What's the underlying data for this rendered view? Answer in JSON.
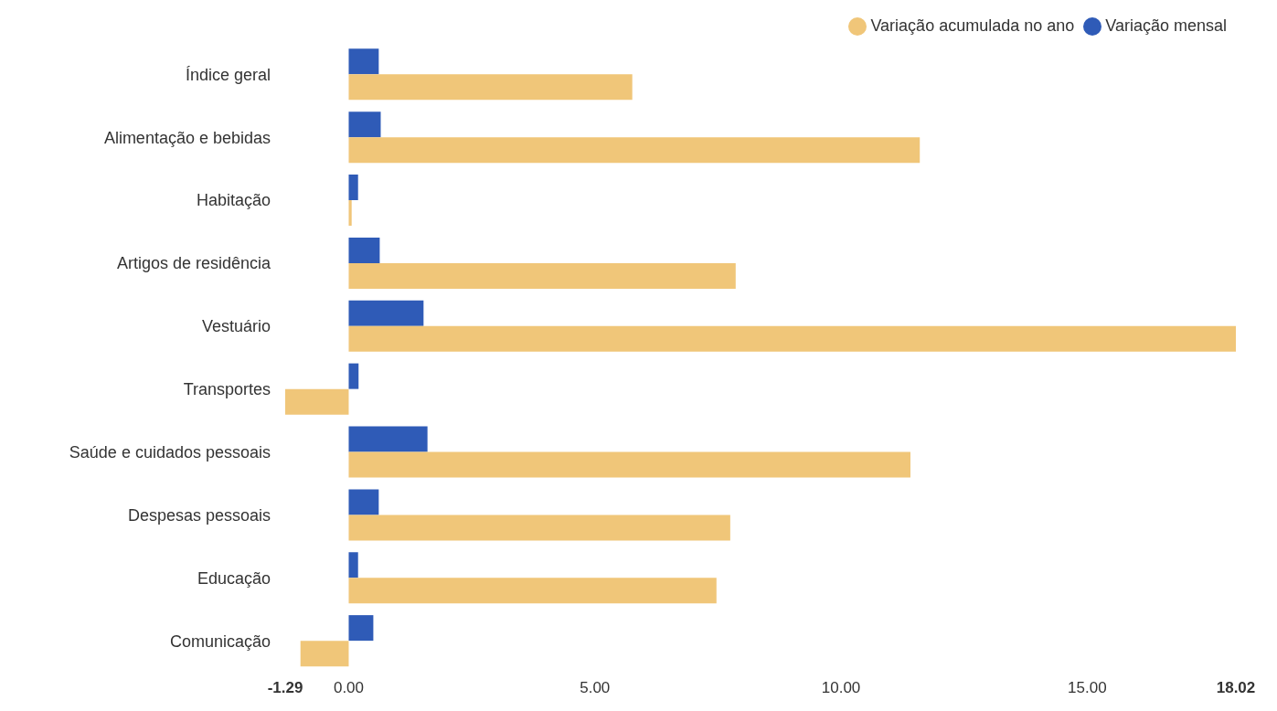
{
  "chart_data": {
    "type": "bar",
    "orientation": "horizontal",
    "categories": [
      "Índice geral",
      "Alimentação e bebidas",
      "Habitação",
      "Artigos de residência",
      "Vestuário",
      "Transportes",
      "Saúde e cuidados pessoais",
      "Despesas pessoais",
      "Educação",
      "Comunicação"
    ],
    "series": [
      {
        "name": "Variação mensal",
        "color": "#2f5bb7",
        "values": [
          0.61,
          0.65,
          0.19,
          0.63,
          1.52,
          0.2,
          1.6,
          0.61,
          0.19,
          0.5
        ]
      },
      {
        "name": "Variação acumulada no ano",
        "color": "#f0c679",
        "values": [
          5.76,
          11.6,
          0.06,
          7.86,
          18.02,
          -1.29,
          11.41,
          7.75,
          7.47,
          -0.98
        ]
      }
    ],
    "xlim": [
      -1.29,
      18.02
    ],
    "xticks": [
      {
        "value": -1.29,
        "label": "-1.29"
      },
      {
        "value": 0,
        "label": "0.00"
      },
      {
        "value": 5,
        "label": "5.00"
      },
      {
        "value": 10,
        "label": "10.00"
      },
      {
        "value": 15,
        "label": "15.00"
      },
      {
        "value": 18.02,
        "label": "18.02"
      }
    ],
    "grid": false,
    "legend": "top right"
  }
}
